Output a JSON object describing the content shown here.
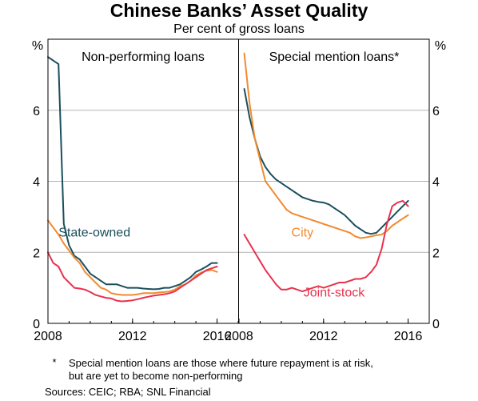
{
  "chart_data": {
    "type": "line",
    "title": "Chinese Banks’ Asset Quality",
    "subtitle": "Per cent of gross loans",
    "yunit_left": "%",
    "yunit_right": "%",
    "ylim": [
      0,
      8
    ],
    "yticks": [
      "0",
      "2",
      "4",
      "6"
    ],
    "xlim": [
      2008,
      2017
    ],
    "xticks": [
      "2008",
      "2012",
      "2016"
    ],
    "colors": {
      "state": "#1b4f5c",
      "city": "#f28a30",
      "joint": "#e8324e"
    },
    "panels": [
      {
        "title": "Non-performing loans",
        "series": [
          {
            "name": "State-owned",
            "color_key": "state",
            "x": [
              2008.0,
              2008.5,
              2008.75,
              2009.0,
              2009.25,
              2009.5,
              2009.75,
              2010.0,
              2010.25,
              2010.5,
              2010.75,
              2011.0,
              2011.25,
              2011.5,
              2011.75,
              2012.0,
              2012.25,
              2012.5,
              2012.75,
              2013.0,
              2013.25,
              2013.5,
              2013.75,
              2014.0,
              2014.25,
              2014.5,
              2014.75,
              2015.0,
              2015.25,
              2015.5,
              2015.75,
              2016.0
            ],
            "values": [
              7.5,
              7.3,
              2.8,
              2.2,
              1.9,
              1.8,
              1.6,
              1.4,
              1.3,
              1.2,
              1.1,
              1.1,
              1.1,
              1.05,
              1.0,
              1.0,
              1.0,
              0.98,
              0.97,
              0.96,
              0.97,
              1.0,
              1.0,
              1.05,
              1.1,
              1.2,
              1.3,
              1.45,
              1.52,
              1.6,
              1.7,
              1.7
            ]
          },
          {
            "name": "City",
            "color_key": "city",
            "x": [
              2008.0,
              2008.5,
              2008.75,
              2009.0,
              2009.25,
              2009.5,
              2009.75,
              2010.0,
              2010.25,
              2010.5,
              2010.75,
              2011.0,
              2011.25,
              2011.5,
              2011.75,
              2012.0,
              2012.25,
              2012.5,
              2012.75,
              2013.0,
              2013.25,
              2013.5,
              2013.75,
              2014.0,
              2014.25,
              2014.5,
              2014.75,
              2015.0,
              2015.25,
              2015.5,
              2015.75,
              2016.0
            ],
            "values": [
              2.9,
              2.5,
              2.25,
              2.05,
              1.85,
              1.7,
              1.45,
              1.3,
              1.15,
              1.0,
              0.95,
              0.85,
              0.82,
              0.8,
              0.8,
              0.8,
              0.82,
              0.85,
              0.85,
              0.85,
              0.87,
              0.88,
              0.9,
              0.95,
              1.05,
              1.1,
              1.2,
              1.35,
              1.43,
              1.48,
              1.5,
              1.45
            ]
          },
          {
            "name": "Joint-stock",
            "color_key": "joint",
            "x": [
              2008.0,
              2008.25,
              2008.5,
              2008.75,
              2009.0,
              2009.25,
              2009.5,
              2009.75,
              2010.0,
              2010.25,
              2010.5,
              2010.75,
              2011.0,
              2011.25,
              2011.5,
              2011.75,
              2012.0,
              2012.25,
              2012.5,
              2012.75,
              2013.0,
              2013.25,
              2013.5,
              2013.75,
              2014.0,
              2014.25,
              2014.5,
              2014.75,
              2015.0,
              2015.25,
              2015.5,
              2015.75,
              2016.0
            ],
            "values": [
              2.0,
              1.7,
              1.6,
              1.3,
              1.15,
              1.0,
              0.98,
              0.95,
              0.88,
              0.8,
              0.76,
              0.72,
              0.7,
              0.64,
              0.62,
              0.63,
              0.65,
              0.68,
              0.72,
              0.75,
              0.78,
              0.8,
              0.82,
              0.85,
              0.9,
              1.0,
              1.1,
              1.2,
              1.3,
              1.4,
              1.5,
              1.55,
              1.6
            ]
          }
        ]
      },
      {
        "title": "Special mention loans*",
        "series": [
          {
            "name": "State-owned",
            "color_key": "state",
            "x": [
              2008.25,
              2008.5,
              2008.75,
              2009.0,
              2009.25,
              2009.5,
              2009.75,
              2010.0,
              2010.25,
              2010.5,
              2010.75,
              2011.0,
              2011.25,
              2011.5,
              2011.75,
              2012.0,
              2012.25,
              2012.5,
              2012.75,
              2013.0,
              2013.25,
              2013.5,
              2013.75,
              2014.0,
              2014.25,
              2014.5,
              2014.75,
              2015.0,
              2015.25,
              2015.5,
              2015.75,
              2016.0
            ],
            "values": [
              6.6,
              5.8,
              5.2,
              4.7,
              4.4,
              4.2,
              4.05,
              3.95,
              3.85,
              3.75,
              3.65,
              3.55,
              3.5,
              3.45,
              3.42,
              3.4,
              3.35,
              3.25,
              3.15,
              3.05,
              2.9,
              2.75,
              2.65,
              2.55,
              2.52,
              2.55,
              2.7,
              2.85,
              3.0,
              3.15,
              3.3,
              3.45
            ]
          },
          {
            "name": "City",
            "color_key": "city",
            "x": [
              2008.25,
              2008.5,
              2008.75,
              2009.0,
              2009.25,
              2009.5,
              2009.75,
              2010.0,
              2010.25,
              2010.5,
              2010.75,
              2011.0,
              2011.25,
              2011.5,
              2011.75,
              2012.0,
              2012.25,
              2012.5,
              2012.75,
              2013.0,
              2013.25,
              2013.5,
              2013.75,
              2014.0,
              2014.25,
              2014.5,
              2014.75,
              2015.0,
              2015.25,
              2015.5,
              2015.75,
              2016.0
            ],
            "values": [
              7.6,
              6.2,
              5.2,
              4.6,
              4.0,
              3.8,
              3.6,
              3.4,
              3.2,
              3.1,
              3.05,
              3.0,
              2.95,
              2.9,
              2.85,
              2.8,
              2.75,
              2.7,
              2.65,
              2.6,
              2.55,
              2.45,
              2.4,
              2.42,
              2.45,
              2.48,
              2.5,
              2.6,
              2.75,
              2.85,
              2.95,
              3.05
            ]
          },
          {
            "name": "Joint-stock",
            "color_key": "joint",
            "x": [
              2008.25,
              2008.5,
              2008.75,
              2009.0,
              2009.25,
              2009.5,
              2009.75,
              2010.0,
              2010.25,
              2010.5,
              2010.75,
              2011.0,
              2011.25,
              2011.5,
              2011.75,
              2012.0,
              2012.25,
              2012.5,
              2012.75,
              2013.0,
              2013.25,
              2013.5,
              2013.75,
              2014.0,
              2014.25,
              2014.5,
              2014.75,
              2015.0,
              2015.25,
              2015.5,
              2015.75,
              2016.0
            ],
            "values": [
              2.5,
              2.25,
              2.0,
              1.75,
              1.5,
              1.3,
              1.1,
              0.95,
              0.95,
              1.0,
              0.95,
              0.9,
              0.95,
              1.0,
              1.05,
              1.0,
              1.05,
              1.1,
              1.15,
              1.15,
              1.2,
              1.25,
              1.25,
              1.3,
              1.45,
              1.65,
              2.1,
              2.8,
              3.3,
              3.4,
              3.45,
              3.3
            ]
          }
        ]
      }
    ],
    "annotations": [
      {
        "panel": 0,
        "text": "State-owned",
        "color_key": "state",
        "x": 2010.2,
        "y": 2.45
      },
      {
        "panel": 1,
        "text": "City",
        "color_key": "city",
        "x": 2011.0,
        "y": 2.45
      },
      {
        "panel": 1,
        "text": "Joint-stock",
        "color_key": "joint",
        "x": 2012.5,
        "y": 0.75
      }
    ],
    "footnote_marker": "*",
    "footnote_line1": "Special mention loans are those where future repayment is at risk,",
    "footnote_line2": "but are yet to become non-performing",
    "sources": "Sources:  CEIC; RBA; SNL Financial"
  }
}
